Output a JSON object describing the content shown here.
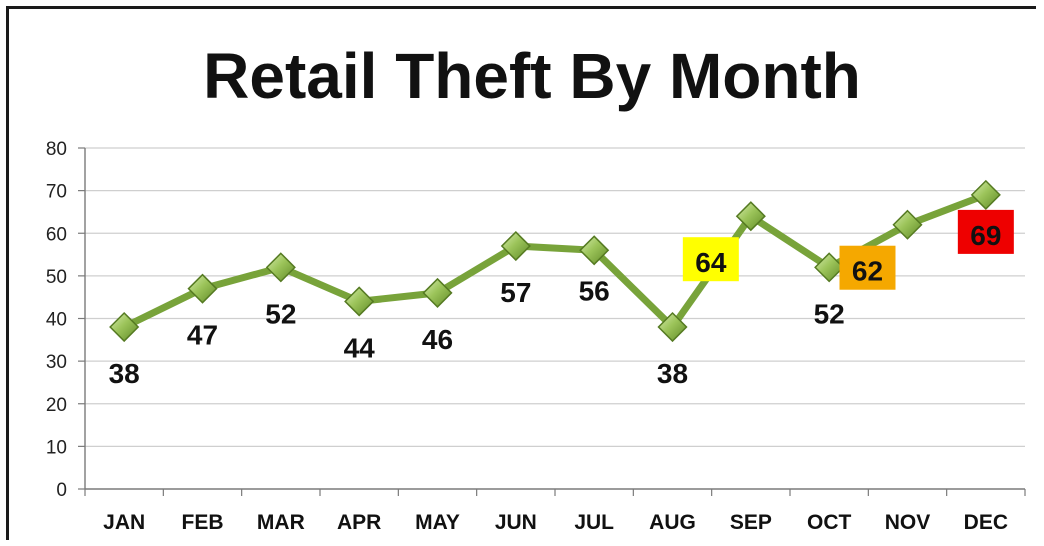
{
  "chart_data": {
    "type": "line",
    "title": "Retail Theft By Month",
    "xlabel": "",
    "ylabel": "",
    "categories": [
      "JAN",
      "FEB",
      "MAR",
      "APR",
      "MAY",
      "JUN",
      "JUL",
      "AUG",
      "SEP",
      "OCT",
      "NOV",
      "DEC"
    ],
    "series": [
      {
        "values": [
          38,
          47,
          52,
          44,
          46,
          57,
          56,
          38,
          64,
          52,
          62,
          69
        ],
        "color": "#78a33a",
        "marker": "diamond"
      }
    ],
    "ylim": [
      0,
      80
    ],
    "yticks": [
      0,
      10,
      20,
      30,
      40,
      50,
      60,
      70,
      80
    ],
    "grid": true,
    "legend": "none",
    "highlights": [
      {
        "category": "SEP",
        "background": "#ffff00"
      },
      {
        "category": "NOV",
        "background": "#f5a800"
      },
      {
        "category": "DEC",
        "background": "#ee0000"
      }
    ]
  }
}
